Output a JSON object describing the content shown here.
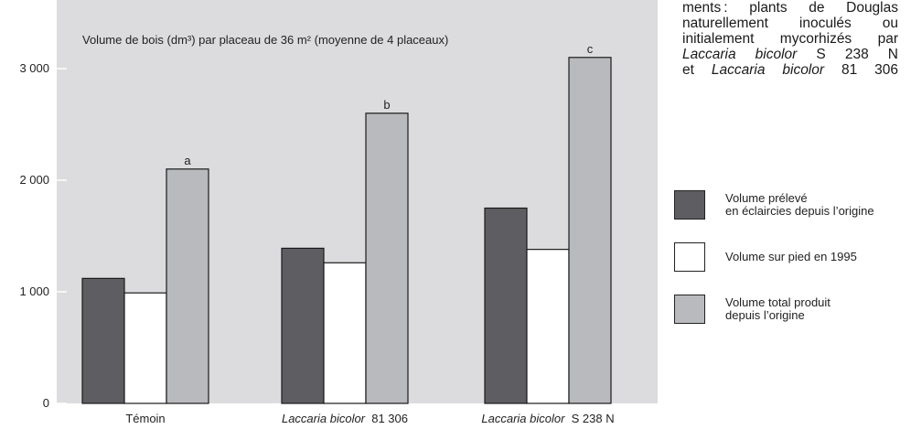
{
  "caption": {
    "lines": [
      {
        "parts": [
          {
            "text": "ments : plants de Douglas",
            "italic": false
          }
        ]
      },
      {
        "parts": [
          {
            "text": "naturellement inoculés ou",
            "italic": false
          }
        ]
      },
      {
        "parts": [
          {
            "text": "initialement mycorhizés par",
            "italic": false
          }
        ]
      },
      {
        "parts": [
          {
            "text": "Laccaria bicolor",
            "italic": true
          },
          {
            "text": " S 238 N",
            "italic": false
          }
        ]
      },
      {
        "parts": [
          {
            "text": "et ",
            "italic": false
          },
          {
            "text": "Laccaria bicolor",
            "italic": true
          },
          {
            "text": " 81 306",
            "italic": false
          }
        ]
      }
    ]
  },
  "chart_data": {
    "type": "bar",
    "title": "Volume de bois (dm³) par placeau de 36 m² (moyenne de 4 placeaux)",
    "xlabel": "",
    "ylabel": "",
    "ylim": [
      0,
      3350
    ],
    "yticks": [
      0,
      1000,
      2000,
      3000
    ],
    "ytick_labels": [
      "0",
      "1 000",
      "2 000",
      "3 000"
    ],
    "grid": false,
    "legend_position": "right",
    "categories": [
      {
        "parts": [
          {
            "text": "Témoin",
            "italic": false
          }
        ]
      },
      {
        "parts": [
          {
            "text": "Laccaria bicolor",
            "italic": true
          },
          {
            "text": "  81 306",
            "italic": false
          }
        ]
      },
      {
        "parts": [
          {
            "text": "Laccaria bicolor",
            "italic": true
          },
          {
            "text": "  S 238 N",
            "italic": false
          }
        ]
      }
    ],
    "series": [
      {
        "name": "Volume prélevé\nen éclaircies depuis l’origine",
        "color": "#5e5e62",
        "values": [
          1120,
          1390,
          1750
        ]
      },
      {
        "name": "Volume sur pied en 1995",
        "color": "#ffffff",
        "values": [
          990,
          1260,
          1380
        ]
      },
      {
        "name": "Volume total produit\ndepuis l’origine",
        "color": "#b9babd",
        "values": [
          2100,
          2600,
          3100
        ]
      }
    ],
    "significance_labels": [
      "a",
      "b",
      "c"
    ],
    "plot_background": "#dcdcde"
  }
}
